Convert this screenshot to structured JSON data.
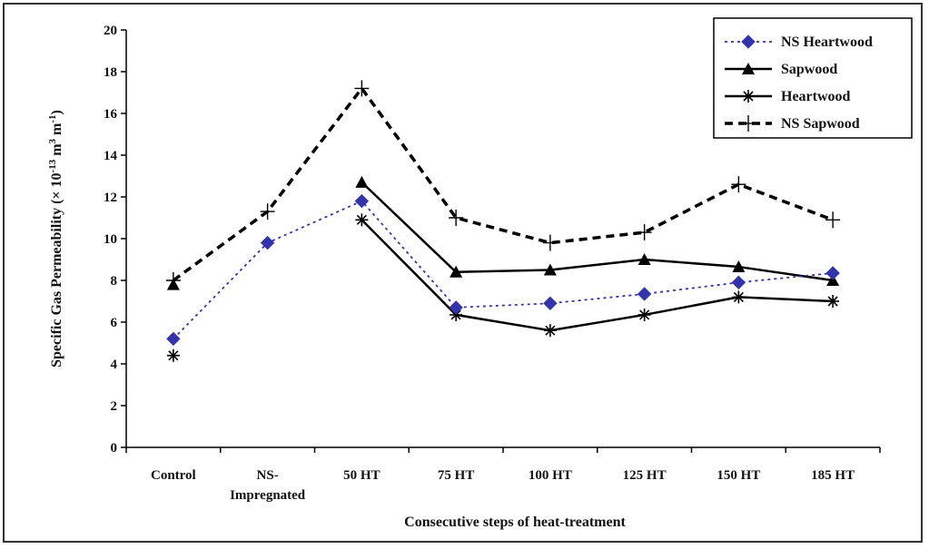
{
  "chart_data": {
    "type": "line",
    "categories": [
      "Control",
      "NS-\nImpregnated",
      "50 HT",
      "75 HT",
      "100 HT",
      "125 HT",
      "150 HT",
      "185 HT"
    ],
    "xlabel": "Consecutive steps of heat-treatment",
    "ylabel": "Specific Gas Permeability (× 10^-13 m^3 m^-1)",
    "ylim": [
      0,
      20
    ],
    "yticks": [
      0,
      2,
      4,
      6,
      8,
      10,
      12,
      14,
      16,
      18,
      20
    ],
    "legend_position": "top-right",
    "series": [
      {
        "name": "NS Heartwood",
        "color": "#3333aa",
        "marker": "diamond",
        "line": "dotted",
        "values": [
          5.2,
          9.8,
          11.8,
          6.7,
          6.9,
          7.35,
          7.9,
          8.35
        ]
      },
      {
        "name": "Sapwood",
        "color": "#000000",
        "marker": "triangle",
        "line": "solid",
        "values": [
          7.8,
          null,
          12.7,
          8.4,
          8.5,
          9.0,
          8.65,
          8.0
        ]
      },
      {
        "name": "Heartwood",
        "color": "#000000",
        "marker": "asterisk",
        "line": "solid",
        "values": [
          4.4,
          null,
          10.9,
          6.35,
          5.6,
          6.35,
          7.2,
          7.0
        ]
      },
      {
        "name": "NS Sapwood",
        "color": "#000000",
        "marker": "plus",
        "line": "dashed",
        "values": [
          8.0,
          11.3,
          17.2,
          11.0,
          9.8,
          10.3,
          12.6,
          10.9
        ]
      }
    ]
  }
}
